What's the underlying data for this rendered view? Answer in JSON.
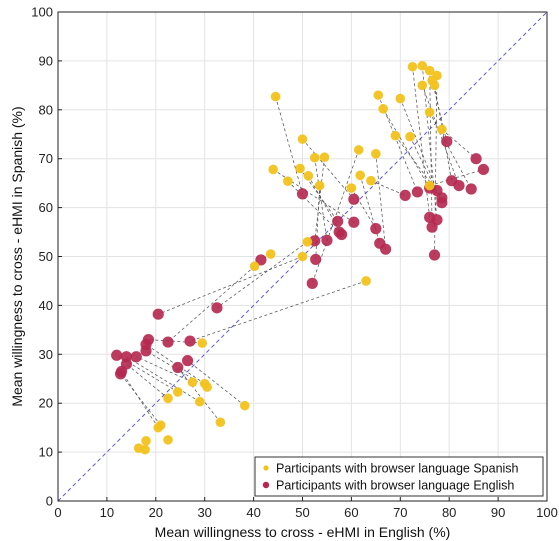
{
  "chart_data": {
    "type": "scatter",
    "xlabel": "Mean willingness to cross - eHMI in English (%)",
    "ylabel": "Mean willingness to cross - eHMI in Spanish (%)",
    "xlim": [
      0,
      100
    ],
    "ylim": [
      0,
      100
    ],
    "xticks": [
      "0",
      "10",
      "20",
      "30",
      "40",
      "50",
      "60",
      "70",
      "80",
      "90",
      "100"
    ],
    "yticks": [
      "0",
      "10",
      "20",
      "30",
      "40",
      "50",
      "60",
      "70",
      "80",
      "90",
      "100"
    ],
    "grid": true,
    "legend_position": "bottom-right",
    "diagonal": true,
    "colors": {
      "spanish": "#f2c21b",
      "english": "#b5274f",
      "diagonal": "#5b5bd6",
      "links": "#444444"
    },
    "series": [
      {
        "name": "Participants with browser language Spanish",
        "marker": "small",
        "points": [
          [
            44.5,
            82.7
          ],
          [
            50,
            74
          ],
          [
            49.5,
            68
          ],
          [
            44,
            67.8
          ],
          [
            47,
            65.4
          ],
          [
            51.2,
            66.5
          ],
          [
            52.5,
            70.2
          ],
          [
            54.5,
            70.3
          ],
          [
            53.5,
            64.5
          ],
          [
            61.5,
            71.8
          ],
          [
            60,
            64
          ],
          [
            61.8,
            66.6
          ],
          [
            65,
            71
          ],
          [
            64,
            65.5
          ],
          [
            65.5,
            83
          ],
          [
            66.5,
            80.2
          ],
          [
            70,
            82.3
          ],
          [
            69,
            74.7
          ],
          [
            72,
            74.5
          ],
          [
            72.5,
            88.8
          ],
          [
            74.5,
            89
          ],
          [
            76,
            88
          ],
          [
            77.5,
            87
          ],
          [
            76.5,
            86
          ],
          [
            77,
            85
          ],
          [
            74.5,
            85
          ],
          [
            76,
            79.5
          ],
          [
            78.5,
            76
          ],
          [
            76,
            64.5
          ],
          [
            43.5,
            50.5
          ],
          [
            50,
            50
          ],
          [
            51,
            53
          ],
          [
            40.2,
            48
          ],
          [
            63,
            45
          ],
          [
            29.5,
            32.3
          ],
          [
            30,
            24
          ],
          [
            30.5,
            23.3
          ],
          [
            27.5,
            24.3
          ],
          [
            29,
            20.3
          ],
          [
            24.5,
            22.3
          ],
          [
            22.5,
            21
          ],
          [
            38.2,
            19.5
          ],
          [
            33.2,
            16.1
          ],
          [
            20.5,
            15
          ],
          [
            21,
            15.5
          ],
          [
            18,
            12.3
          ],
          [
            22.5,
            12.5
          ],
          [
            16.5,
            10.8
          ],
          [
            17.8,
            10.5
          ]
        ]
      },
      {
        "name": "Participants with browser language English",
        "marker": "large",
        "points": [
          [
            50,
            62.8
          ],
          [
            60.5,
            61.7
          ],
          [
            57.2,
            57.2
          ],
          [
            60.5,
            57
          ],
          [
            57.5,
            55
          ],
          [
            58,
            54.5
          ],
          [
            55,
            53.3
          ],
          [
            52.5,
            53.2
          ],
          [
            52.7,
            49.4
          ],
          [
            52,
            44.5
          ],
          [
            65,
            55.7
          ],
          [
            65.8,
            52.7
          ],
          [
            67,
            51.5
          ],
          [
            71,
            62.5
          ],
          [
            73.5,
            63.2
          ],
          [
            76,
            64
          ],
          [
            77.5,
            63.5
          ],
          [
            78.5,
            62
          ],
          [
            78.5,
            61
          ],
          [
            76,
            58
          ],
          [
            77.5,
            57.5
          ],
          [
            76.5,
            56
          ],
          [
            77,
            50.3
          ],
          [
            79.5,
            73.5
          ],
          [
            80.5,
            65.5
          ],
          [
            82,
            64.5
          ],
          [
            84.5,
            63.8
          ],
          [
            85.5,
            70
          ],
          [
            87,
            67.8
          ],
          [
            41.5,
            49.3
          ],
          [
            20.5,
            38.2
          ],
          [
            32.5,
            39.5
          ],
          [
            22.5,
            32.5
          ],
          [
            27,
            32.7
          ],
          [
            18.5,
            33
          ],
          [
            18,
            32
          ],
          [
            18,
            30.7
          ],
          [
            16,
            29.5
          ],
          [
            14,
            29.5
          ],
          [
            12,
            29.8
          ],
          [
            14,
            28
          ],
          [
            26.5,
            28.7
          ],
          [
            24.5,
            27.3
          ],
          [
            13,
            26.5
          ],
          [
            12.8,
            26
          ]
        ]
      }
    ]
  }
}
